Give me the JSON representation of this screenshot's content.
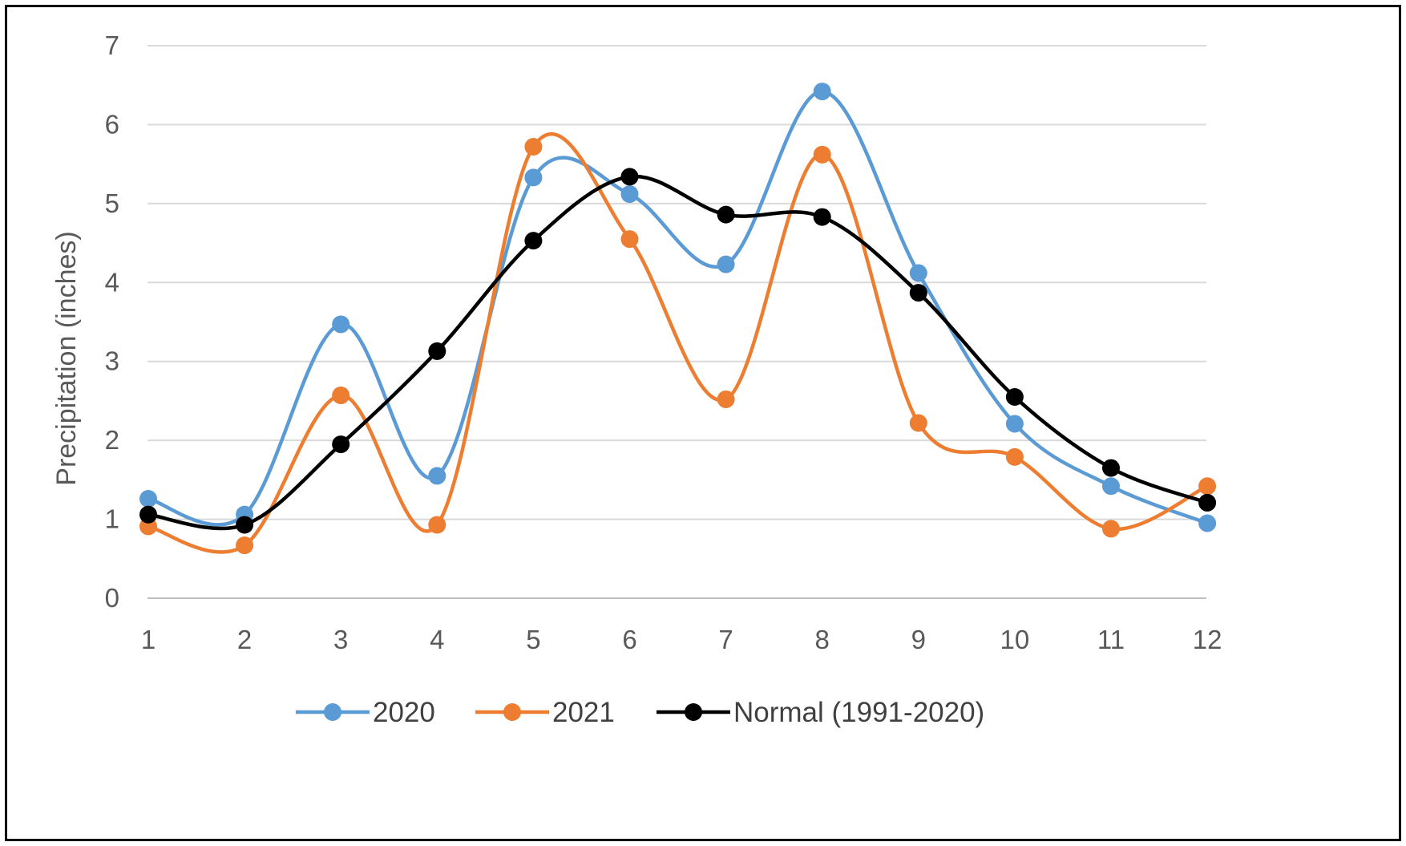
{
  "chart_data": {
    "type": "line",
    "smooth": true,
    "title": "",
    "xlabel": "",
    "ylabel": "Precipitation (inches)",
    "categories": [
      "1",
      "2",
      "3",
      "4",
      "5",
      "6",
      "7",
      "8",
      "9",
      "10",
      "11",
      "12"
    ],
    "ylim": [
      0,
      7
    ],
    "yticks": [
      "0",
      "1",
      "2",
      "3",
      "4",
      "5",
      "6",
      "7"
    ],
    "grid": "horizontal",
    "legend_position": "bottom",
    "series": [
      {
        "name": "2020",
        "color": "#5b9bd5",
        "values": [
          1.26,
          1.06,
          3.47,
          1.55,
          5.33,
          5.12,
          4.23,
          6.42,
          4.12,
          2.21,
          1.42,
          0.95
        ]
      },
      {
        "name": "2021",
        "color": "#ed7d31",
        "values": [
          0.91,
          0.67,
          2.57,
          0.93,
          5.72,
          4.55,
          2.52,
          5.62,
          2.22,
          1.79,
          0.88,
          1.42
        ]
      },
      {
        "name": "Normal (1991-2020)",
        "color": "#000000",
        "values": [
          1.06,
          0.93,
          1.95,
          3.13,
          4.53,
          5.34,
          4.86,
          4.83,
          3.87,
          2.55,
          1.65,
          1.21
        ]
      }
    ]
  }
}
